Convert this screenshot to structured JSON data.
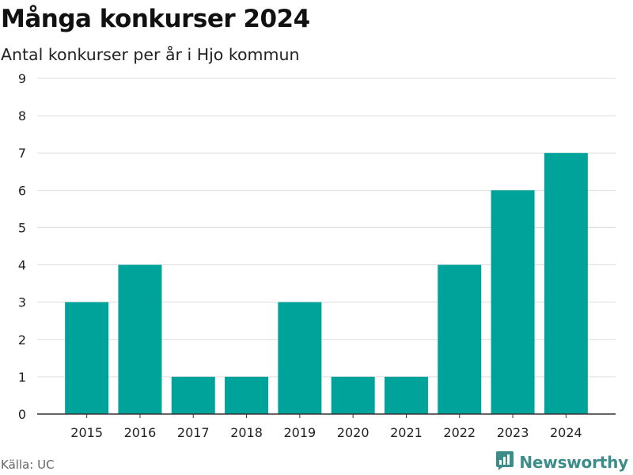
{
  "header": {
    "title": "Många konkurser 2024",
    "subtitle": "Antal konkurser per år i Hjo kommun"
  },
  "footer": {
    "source": "Källa: UC",
    "brand": "Newsworthy",
    "brand_icon": "bar-chart-logo-icon"
  },
  "colors": {
    "bar": "#00a39a",
    "grid": "#dddddd",
    "axis": "#333333",
    "brand": "#3c8c8a"
  },
  "chart_data": {
    "type": "bar",
    "title": "Många konkurser 2024",
    "subtitle": "Antal konkurser per år i Hjo kommun",
    "xlabel": "",
    "ylabel": "",
    "categories": [
      "2015",
      "2016",
      "2017",
      "2018",
      "2019",
      "2020",
      "2021",
      "2022",
      "2023",
      "2024"
    ],
    "values": [
      3,
      4,
      1,
      1,
      3,
      1,
      1,
      4,
      6,
      7
    ],
    "ylim": [
      0,
      9
    ],
    "yticks": [
      0,
      1,
      2,
      3,
      4,
      5,
      6,
      7,
      8,
      9
    ],
    "grid": true,
    "legend": "none"
  }
}
